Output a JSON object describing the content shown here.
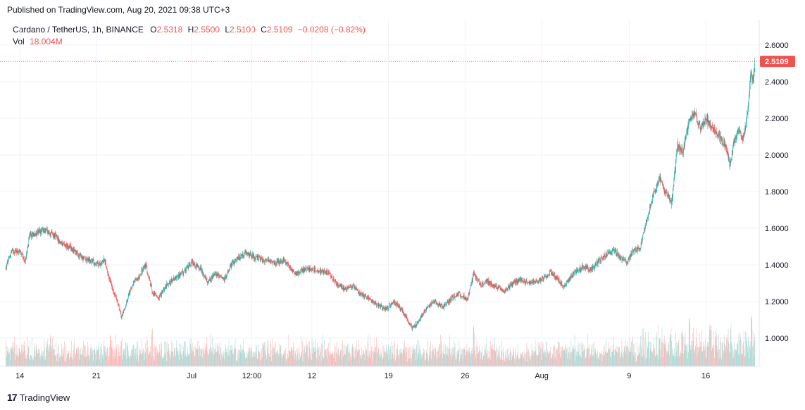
{
  "header": {
    "published": "Published on TradingView.com, Aug 20, 2021 09:38 UTC+3"
  },
  "legend": {
    "symbol": "Cardano / TetherUS, 1h, BINANCE",
    "o_label": "O",
    "o_value": "2.5318",
    "h_label": "H",
    "h_value": "2.5500",
    "l_label": "L",
    "l_value": "2.5100",
    "c_label": "C",
    "c_value": "2.5109",
    "change": "−0.0208 (−0.82%)",
    "vol_label": "Vol",
    "vol_value": "18.004M"
  },
  "footer": {
    "brand": "TradingView",
    "logo": "17"
  },
  "colors": {
    "up": "#26a69a",
    "down": "#ef5350",
    "grid": "#f0f3fa",
    "last_price_bg": "#ef5350"
  },
  "chart_data": {
    "type": "candlestick",
    "ylim": [
      0.9,
      2.65
    ],
    "y_ticks": [
      "2.6000",
      "2.4000",
      "2.2000",
      "2.0000",
      "1.8000",
      "1.6000",
      "1.4000",
      "1.2000",
      "1.0000"
    ],
    "x_ticks": [
      {
        "label": "14",
        "t": 1.3
      },
      {
        "label": "21",
        "t": 8.3
      },
      {
        "label": "Jul",
        "t": 17.0
      },
      {
        "label": "12:00",
        "t": 22.5
      },
      {
        "label": "12",
        "t": 28.0
      },
      {
        "label": "19",
        "t": 35.0
      },
      {
        "label": "26",
        "t": 42.0
      },
      {
        "label": "Aug",
        "t": 49.0
      },
      {
        "label": "9",
        "t": 57.0
      },
      {
        "label": "16",
        "t": 64.0
      }
    ],
    "t_range": [
      0,
      68.5
    ],
    "last_price": "2.5109",
    "last_value": 2.5109,
    "price_path": [
      [
        0,
        1.38
      ],
      [
        0.5,
        1.47
      ],
      [
        1.2,
        1.48
      ],
      [
        1.8,
        1.42
      ],
      [
        2.2,
        1.56
      ],
      [
        3,
        1.58
      ],
      [
        3.6,
        1.59
      ],
      [
        4.5,
        1.56
      ],
      [
        5,
        1.52
      ],
      [
        5.8,
        1.5
      ],
      [
        6.5,
        1.46
      ],
      [
        7.2,
        1.43
      ],
      [
        8,
        1.42
      ],
      [
        8.5,
        1.4
      ],
      [
        9,
        1.43
      ],
      [
        9.6,
        1.3
      ],
      [
        10.2,
        1.2
      ],
      [
        10.6,
        1.12
      ],
      [
        11,
        1.18
      ],
      [
        11.5,
        1.28
      ],
      [
        12.2,
        1.34
      ],
      [
        12.8,
        1.4
      ],
      [
        13.4,
        1.25
      ],
      [
        14,
        1.22
      ],
      [
        14.8,
        1.3
      ],
      [
        15.6,
        1.33
      ],
      [
        16.4,
        1.37
      ],
      [
        17,
        1.41
      ],
      [
        17.8,
        1.38
      ],
      [
        18.4,
        1.31
      ],
      [
        19.3,
        1.35
      ],
      [
        20,
        1.32
      ],
      [
        20.6,
        1.4
      ],
      [
        21.3,
        1.44
      ],
      [
        22,
        1.47
      ],
      [
        22.8,
        1.44
      ],
      [
        23.5,
        1.43
      ],
      [
        24.5,
        1.41
      ],
      [
        25.5,
        1.42
      ],
      [
        26.5,
        1.35
      ],
      [
        27.5,
        1.38
      ],
      [
        28.5,
        1.37
      ],
      [
        29.5,
        1.36
      ],
      [
        30.2,
        1.3
      ],
      [
        31,
        1.27
      ],
      [
        31.8,
        1.28
      ],
      [
        32.5,
        1.24
      ],
      [
        33.2,
        1.22
      ],
      [
        34,
        1.18
      ],
      [
        34.8,
        1.16
      ],
      [
        35.4,
        1.2
      ],
      [
        36,
        1.17
      ],
      [
        36.5,
        1.13
      ],
      [
        37.2,
        1.05
      ],
      [
        37.8,
        1.1
      ],
      [
        38.5,
        1.17
      ],
      [
        39.2,
        1.2
      ],
      [
        40,
        1.17
      ],
      [
        40.8,
        1.22
      ],
      [
        41.5,
        1.24
      ],
      [
        42.2,
        1.21
      ],
      [
        42.8,
        1.35
      ],
      [
        43.4,
        1.29
      ],
      [
        44,
        1.31
      ],
      [
        44.8,
        1.28
      ],
      [
        45.6,
        1.26
      ],
      [
        46.4,
        1.3
      ],
      [
        47,
        1.32
      ],
      [
        47.8,
        1.3
      ],
      [
        48.5,
        1.31
      ],
      [
        49.2,
        1.33
      ],
      [
        49.8,
        1.36
      ],
      [
        50.4,
        1.33
      ],
      [
        51,
        1.28
      ],
      [
        51.6,
        1.33
      ],
      [
        52.2,
        1.37
      ],
      [
        52.8,
        1.39
      ],
      [
        53.5,
        1.37
      ],
      [
        54.2,
        1.42
      ],
      [
        55,
        1.46
      ],
      [
        55.6,
        1.48
      ],
      [
        56.2,
        1.44
      ],
      [
        56.8,
        1.42
      ],
      [
        57.4,
        1.48
      ],
      [
        58,
        1.49
      ],
      [
        58.5,
        1.62
      ],
      [
        59.2,
        1.78
      ],
      [
        59.8,
        1.87
      ],
      [
        60.3,
        1.8
      ],
      [
        60.9,
        1.74
      ],
      [
        61.4,
        2.05
      ],
      [
        61.9,
        2.02
      ],
      [
        62.5,
        2.19
      ],
      [
        63,
        2.23
      ],
      [
        63.5,
        2.14
      ],
      [
        64,
        2.2
      ],
      [
        64.6,
        2.15
      ],
      [
        65.2,
        2.1
      ],
      [
        65.8,
        2.06
      ],
      [
        66.2,
        1.94
      ],
      [
        66.6,
        2.08
      ],
      [
        67,
        2.14
      ],
      [
        67.4,
        2.08
      ],
      [
        67.8,
        2.22
      ],
      [
        68.1,
        2.45
      ],
      [
        68.3,
        2.4
      ],
      [
        68.5,
        2.5109
      ]
    ],
    "volume_ylim": [
      0,
      100
    ],
    "volume_spikes": [
      [
        9.6,
        45
      ],
      [
        10.6,
        40
      ],
      [
        13.4,
        55
      ],
      [
        42.8,
        60
      ],
      [
        60.8,
        40
      ],
      [
        62.5,
        50
      ],
      [
        64.4,
        45
      ],
      [
        68.2,
        55
      ]
    ]
  }
}
